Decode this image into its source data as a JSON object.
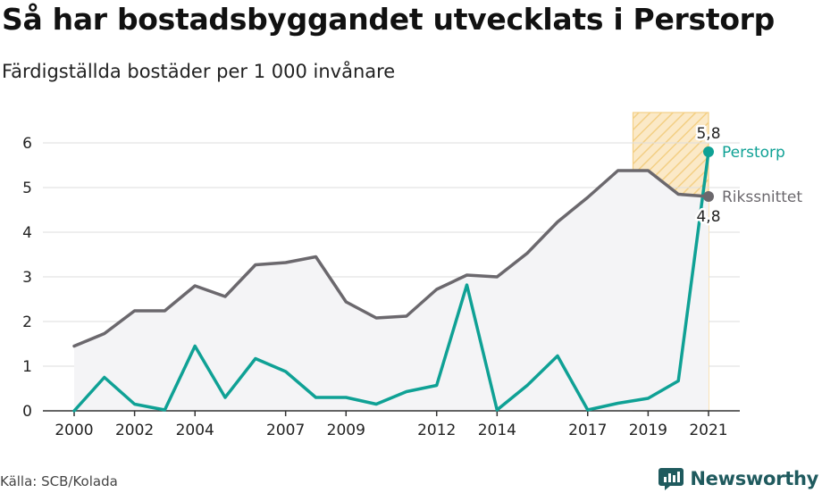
{
  "title": "Så har bostadsbyggandet utvecklats i Perstorp",
  "subtitle": "Färdigställda bostäder per 1 000 invånare",
  "source": "Källa: SCB/Kolada",
  "brand": {
    "name": "Newsworthy",
    "icon": "newsworthy-logo-icon"
  },
  "colors": {
    "perstorp": "#0fa195",
    "riksnittet": "#6b686d",
    "highlight_fill": "#fbe9c7",
    "highlight_hatch": "#f3cf85",
    "area_fill": "#f4f4f6",
    "grid": "#dddddd",
    "axis": "#333333"
  },
  "chart_data": {
    "type": "line",
    "title": "Så har bostadsbyggandet utvecklats i Perstorp",
    "subtitle": "Färdigställda bostäder per 1 000 invånare",
    "xlabel": "",
    "ylabel": "",
    "x": [
      2000,
      2001,
      2002,
      2003,
      2004,
      2005,
      2006,
      2007,
      2008,
      2009,
      2010,
      2011,
      2012,
      2013,
      2014,
      2015,
      2016,
      2017,
      2018,
      2019,
      2020,
      2021
    ],
    "x_ticks": [
      "2000",
      "2002",
      "2004",
      "2007",
      "2009",
      "2012",
      "2014",
      "2017",
      "2019",
      "2021"
    ],
    "y_ticks": [
      "0",
      "1",
      "2",
      "3",
      "4",
      "5",
      "6"
    ],
    "ylim": [
      0,
      6.6
    ],
    "grid": true,
    "highlight_range": [
      2018.5,
      2021
    ],
    "series": [
      {
        "name": "Perstorp",
        "color": "#0fa195",
        "values": [
          0,
          0.75,
          0.15,
          0.02,
          1.45,
          0.3,
          1.17,
          0.88,
          0.3,
          0.3,
          0.15,
          0.43,
          0.57,
          2.82,
          0.02,
          0.57,
          1.23,
          0.02,
          0.17,
          0.28,
          0.67,
          5.8
        ],
        "end_label": "5,8"
      },
      {
        "name": "Rikssnittet",
        "color": "#6b686d",
        "values": [
          1.45,
          1.73,
          2.24,
          2.24,
          2.8,
          2.56,
          3.27,
          3.32,
          3.45,
          2.44,
          2.08,
          2.12,
          2.72,
          3.04,
          3.0,
          3.53,
          4.23,
          4.78,
          5.38,
          5.38,
          4.85,
          4.8
        ],
        "end_label": "4,8"
      }
    ]
  }
}
